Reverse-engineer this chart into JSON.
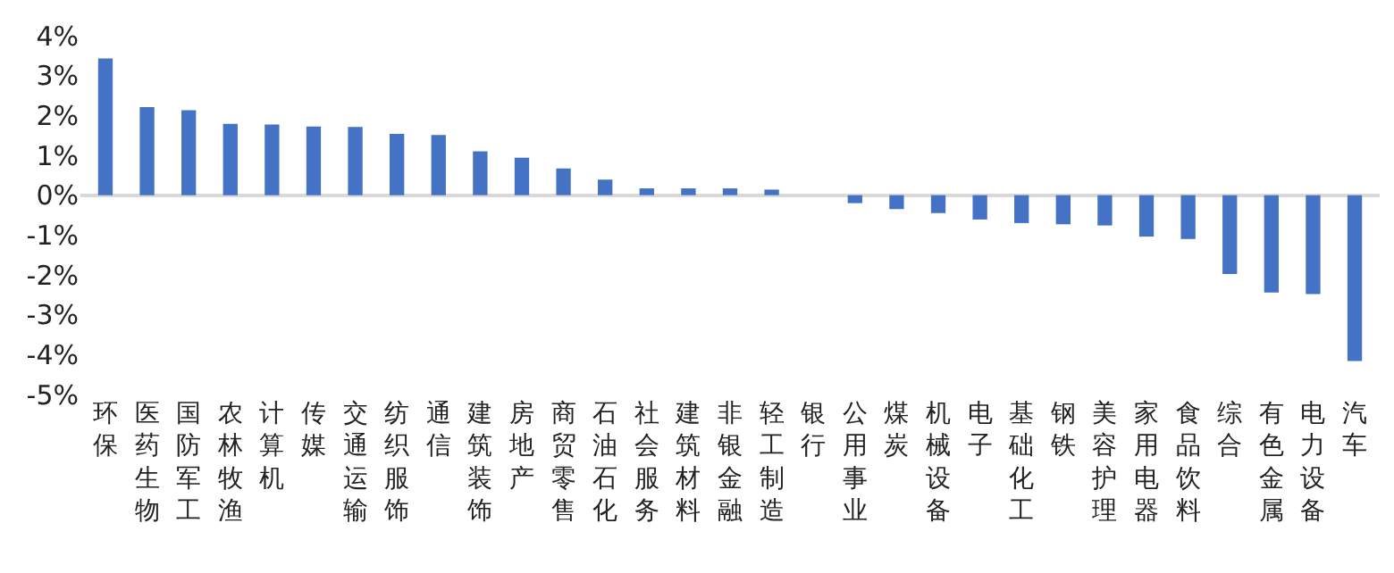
{
  "chart_data": {
    "type": "bar",
    "categories": [
      "环保",
      "医药生物",
      "国防军工",
      "农林牧渔",
      "计算机",
      "传媒",
      "交通运输",
      "纺织服饰",
      "通信",
      "建筑装饰",
      "房地产",
      "商贸零售",
      "石油石化",
      "社会服务",
      "建筑材料",
      "非银金融",
      "轻工制造",
      "银行",
      "公用事业",
      "煤炭",
      "机械设备",
      "电子",
      "基础化工",
      "钢铁",
      "美容护理",
      "家用电器",
      "食品饮料",
      "综合",
      "有色金属",
      "电力设备",
      "汽车"
    ],
    "values": [
      3.43,
      2.21,
      2.13,
      1.79,
      1.77,
      1.72,
      1.71,
      1.54,
      1.51,
      1.1,
      0.94,
      0.67,
      0.39,
      0.17,
      0.17,
      0.17,
      0.14,
      0,
      -0.2,
      -0.35,
      -0.45,
      -0.61,
      -0.7,
      -0.73,
      -0.76,
      -1.04,
      -1.1,
      -1.98,
      -2.44,
      -2.48,
      -4.16
    ],
    "color": "#4472c4",
    "ylim": [
      -5,
      4
    ],
    "yticks": [
      {
        "value": 4,
        "label": "4%"
      },
      {
        "value": 3,
        "label": "3%"
      },
      {
        "value": 2,
        "label": "2%"
      },
      {
        "value": 1,
        "label": "1%"
      },
      {
        "value": 0,
        "label": "0%"
      },
      {
        "value": -1,
        "label": "-1%"
      },
      {
        "value": -2,
        "label": "-2%"
      },
      {
        "value": -3,
        "label": "-3%"
      },
      {
        "value": -4,
        "label": "-4%"
      },
      {
        "value": -5,
        "label": "-5%"
      }
    ]
  }
}
